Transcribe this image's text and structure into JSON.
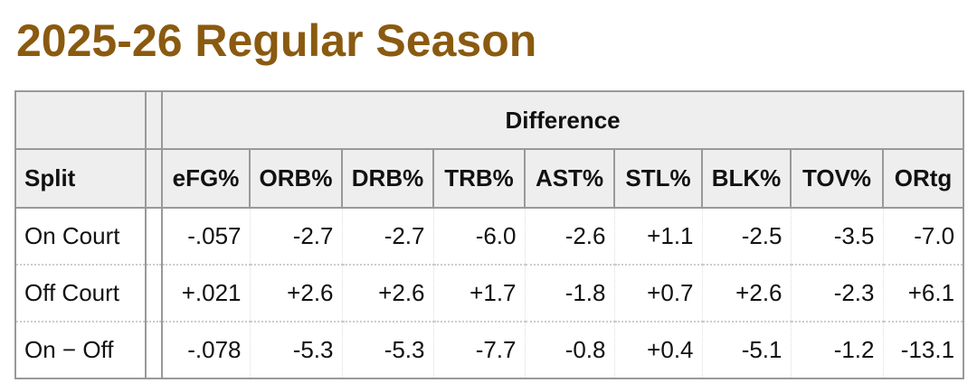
{
  "header": {
    "title": "2025-26 Regular Season"
  },
  "table": {
    "group_header": "Difference",
    "columns": [
      "Split",
      "eFG%",
      "ORB%",
      "DRB%",
      "TRB%",
      "AST%",
      "STL%",
      "BLK%",
      "TOV%",
      "ORtg"
    ],
    "rows": [
      [
        "On Court",
        "-.057",
        "-2.7",
        "-2.7",
        "-6.0",
        "-2.6",
        "+1.1",
        "-2.5",
        "-3.5",
        "-7.0"
      ],
      [
        "Off Court",
        "+.021",
        "+2.6",
        "+2.6",
        "+1.7",
        "-1.8",
        "+0.7",
        "+2.6",
        "-2.3",
        "+6.1"
      ],
      [
        "On − Off",
        "-.078",
        "-5.3",
        "-5.3",
        "-7.7",
        "-0.8",
        "+0.4",
        "-5.1",
        "-1.2",
        "-13.1"
      ]
    ]
  }
}
